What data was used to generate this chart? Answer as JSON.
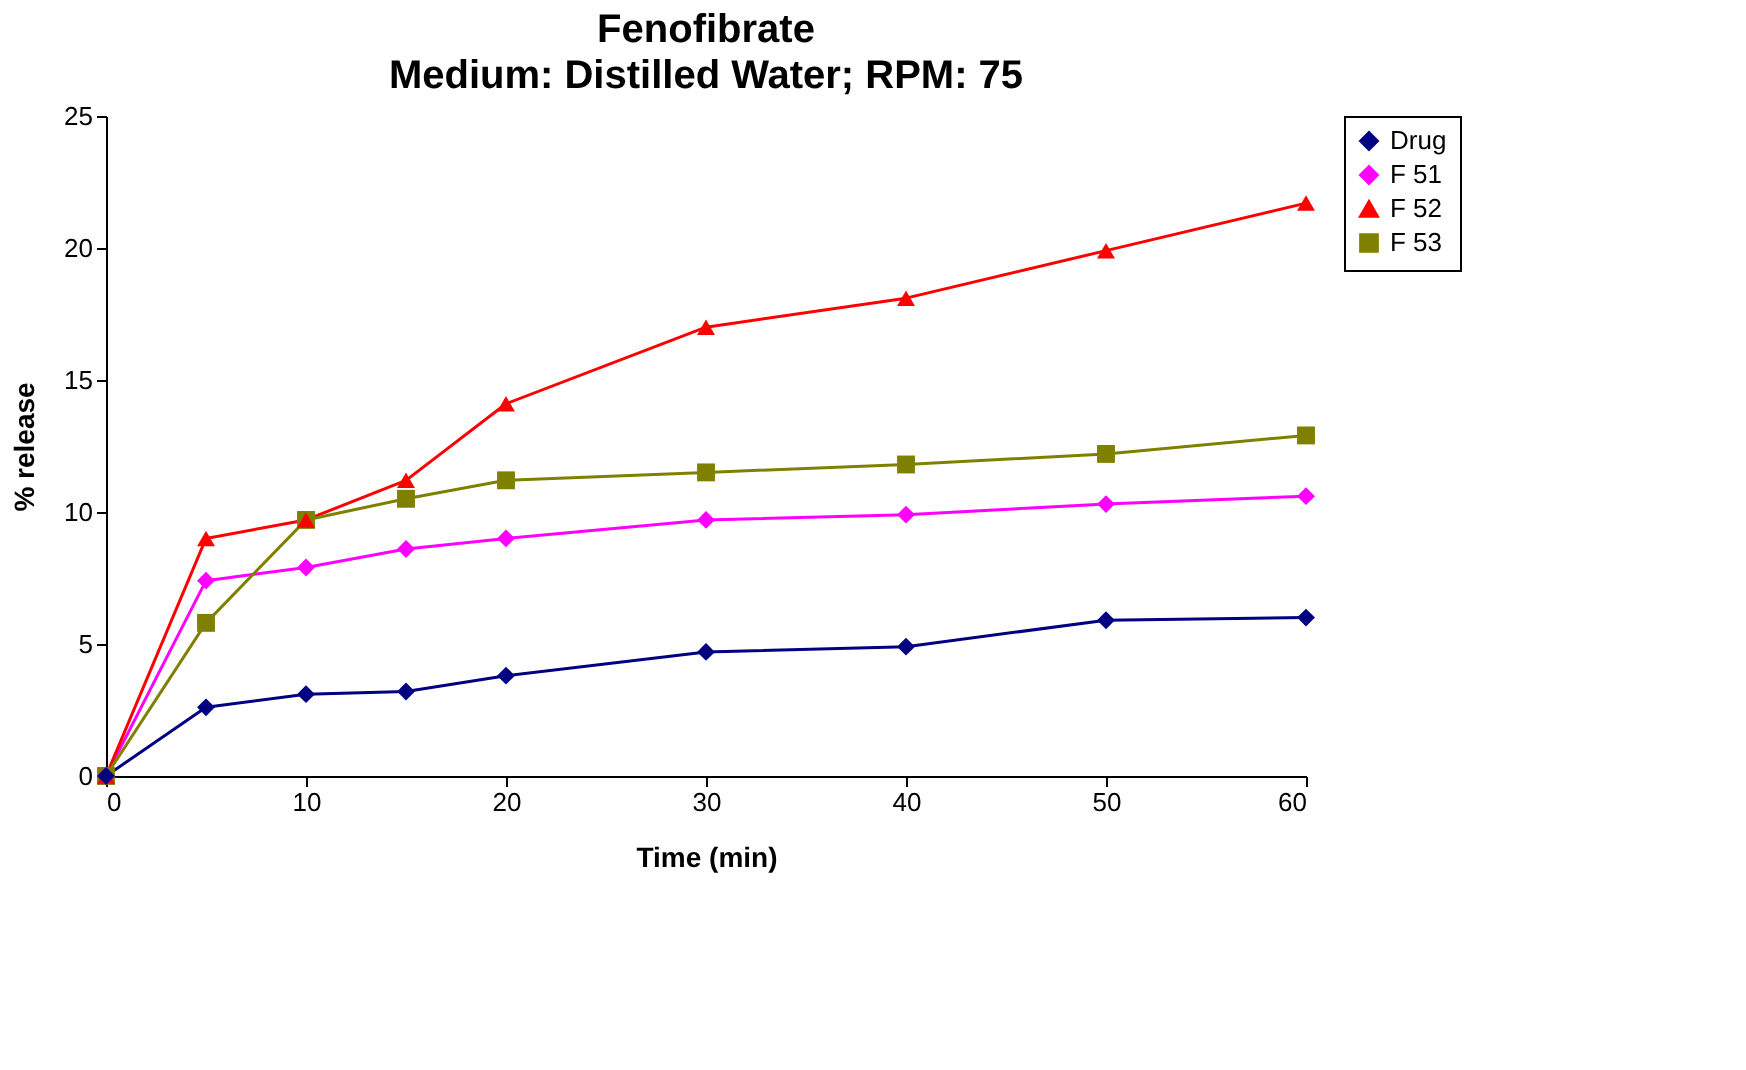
{
  "chart_data": {
    "type": "line",
    "title": "Fenofibrate",
    "subtitle": "Medium: Distilled Water; RPM: 75",
    "xlabel": "Time (min)",
    "ylabel": "% release",
    "x": [
      0,
      5,
      10,
      15,
      20,
      30,
      40,
      50,
      60
    ],
    "series": [
      {
        "name": "Drug",
        "color": "#000080",
        "marker": "diamond",
        "values": [
          0,
          2.6,
          3.1,
          3.2,
          3.8,
          4.7,
          4.9,
          5.9,
          6.0
        ]
      },
      {
        "name": "F 51",
        "color": "#ff00ff",
        "marker": "diamond",
        "values": [
          0,
          7.4,
          7.9,
          8.6,
          9.0,
          9.7,
          9.9,
          10.3,
          10.6
        ]
      },
      {
        "name": "F 52",
        "color": "#ff0000",
        "marker": "triangle",
        "values": [
          0,
          9.0,
          9.7,
          11.2,
          14.1,
          17.0,
          18.1,
          19.9,
          21.7
        ]
      },
      {
        "name": "F 53",
        "color": "#808000",
        "marker": "square",
        "values": [
          0,
          5.8,
          9.7,
          10.5,
          11.2,
          11.5,
          11.8,
          12.2,
          12.9
        ]
      }
    ],
    "xlim": [
      0,
      60
    ],
    "xticks": [
      0,
      10,
      20,
      30,
      40,
      50,
      60
    ],
    "ylim": [
      0,
      25
    ],
    "yticks": [
      0,
      5,
      10,
      15,
      20,
      25
    ],
    "grid": false,
    "legend": "right",
    "line_style": "solid"
  }
}
